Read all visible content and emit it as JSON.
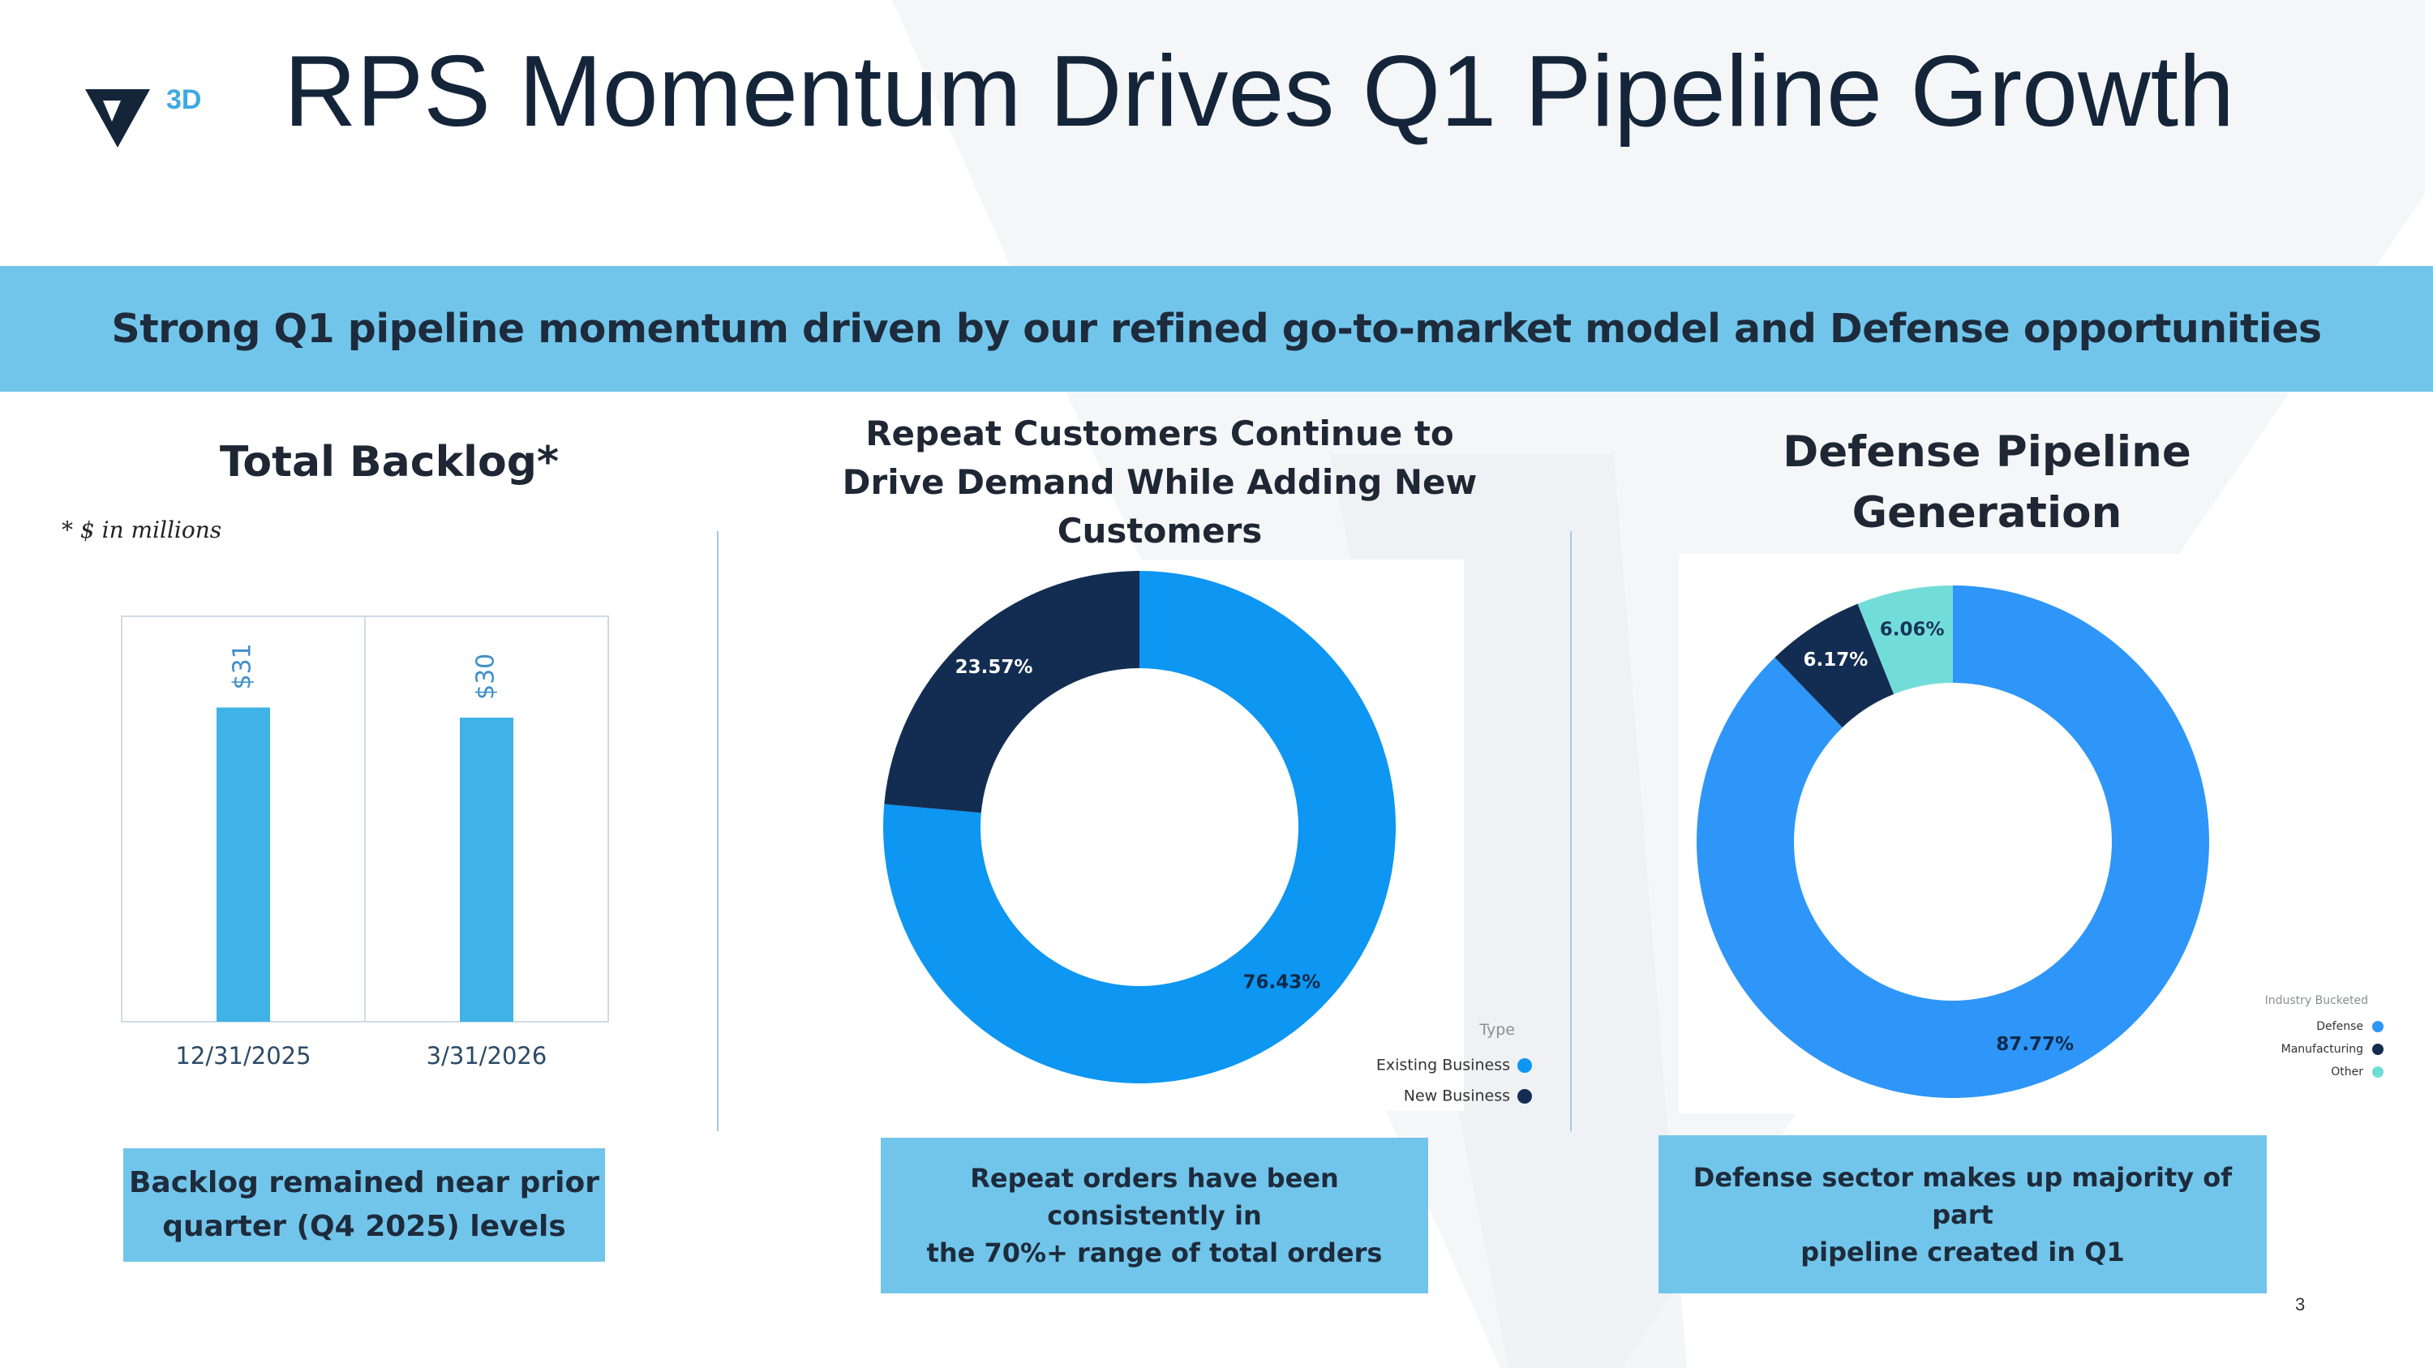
{
  "logo": {
    "text": "3D"
  },
  "title": "RPS Momentum Drives Q1 Pipeline Growth",
  "banner": "Strong Q1 pipeline momentum driven by our refined go-to-market model and Defense opportunities",
  "backlog": {
    "title": "Total Backlog*",
    "note": "* $ in millions",
    "callout": [
      "Backlog remained near prior",
      "quarter (Q4 2025) levels"
    ]
  },
  "repeat": {
    "title": [
      "Repeat Customers Continue to",
      "Drive Demand While Adding New",
      "Customers"
    ],
    "callout": [
      "Repeat orders have been consistently in",
      "the 70%+ range of total orders"
    ]
  },
  "defense": {
    "title": [
      "Defense Pipeline",
      "Generation"
    ],
    "callout": [
      "Defense sector makes up majority of part",
      "pipeline created in Q1"
    ]
  },
  "page_number": "3",
  "colors": {
    "navy": "#132d52",
    "bar_blue": "#3fb3e6",
    "donut_blue": "#0d96f2",
    "defense_blue": "#2e96f8",
    "teal": "#72ddd8",
    "banner": "#72c5ea"
  },
  "chart_data": [
    {
      "type": "bar",
      "title": "Total Backlog*",
      "categories": [
        "12/31/2025",
        "3/31/2026"
      ],
      "values": [
        31,
        30
      ],
      "value_labels": [
        "$31",
        "$30"
      ],
      "ylim": [
        0,
        40
      ],
      "grid": false
    },
    {
      "type": "pie",
      "title": "Repeat Customers Continue to Drive Demand While Adding New Customers",
      "legend_title": "Type",
      "legend_position": "bottom-right",
      "series": [
        {
          "name": "Existing Business",
          "value": 76.43,
          "label": "76.43%",
          "color": "#0d96f2"
        },
        {
          "name": "New Business",
          "value": 23.57,
          "label": "23.57%",
          "color": "#132d52"
        }
      ]
    },
    {
      "type": "pie",
      "title": "Defense Pipeline Generation",
      "legend_title": "Industry Bucketed",
      "legend_position": "bottom-right",
      "series": [
        {
          "name": "Defense",
          "value": 87.77,
          "label": "87.77%",
          "color": "#2e96f8"
        },
        {
          "name": "Manufacturing",
          "value": 6.17,
          "label": "6.17%",
          "color": "#132d52"
        },
        {
          "name": "Other",
          "value": 6.06,
          "label": "6.06%",
          "color": "#72ddd8"
        }
      ]
    }
  ]
}
